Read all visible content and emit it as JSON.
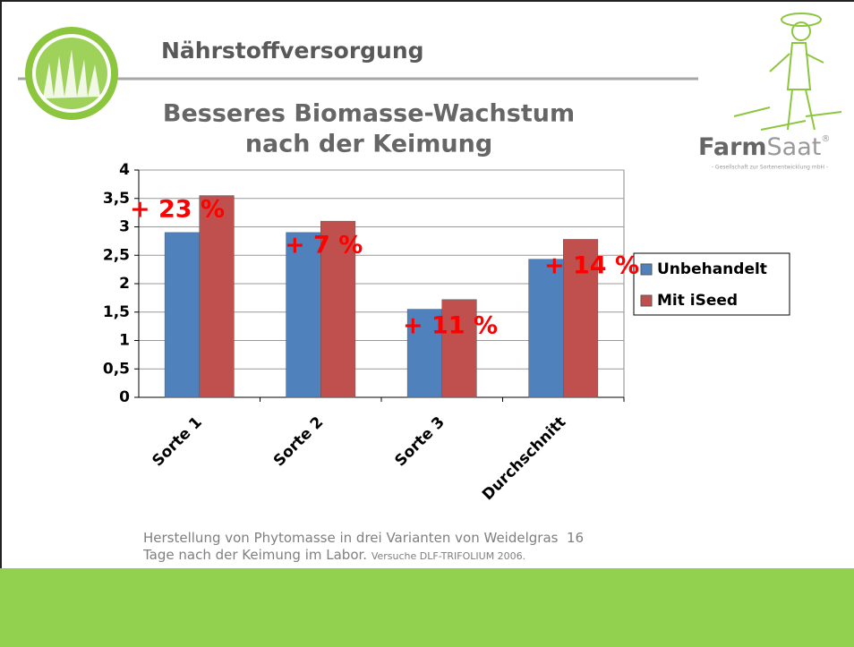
{
  "header": {
    "title": "Nährstoffversorgung",
    "subtitle": [
      "Besseres Biomasse-Wachstum",
      "nach der Keimung"
    ],
    "logo": [
      "Farm",
      "Saat",
      "®"
    ],
    "logo_tagline": "- Gesellschaft zur Sortenentwicklung mbH -"
  },
  "chart_data": {
    "type": "bar",
    "categories": [
      "Sorte 1",
      "Sorte 2",
      "Sorte 3",
      "Durchschnitt"
    ],
    "series": [
      {
        "name": "Unbehandelt",
        "color": "#4f81bd",
        "values": [
          2.9,
          2.9,
          1.55,
          2.43
        ]
      },
      {
        "name": "Mit iSeed",
        "color": "#c0504d",
        "values": [
          3.55,
          3.1,
          1.72,
          2.78
        ]
      }
    ],
    "ylim": [
      0,
      4
    ],
    "yticks": [
      0,
      {
        "value": 0.5,
        "label": "0,5"
      },
      1,
      {
        "value": 1.5,
        "label": "1,5"
      },
      2,
      {
        "value": 2.5,
        "label": "2,5"
      },
      3,
      {
        "value": 3.5,
        "label": "3,5"
      },
      4
    ],
    "grid": true,
    "legend": "right",
    "annotations": [
      "+ 23 %",
      "+ 7 %",
      "+ 11 %",
      "+ 14 %"
    ],
    "annotation_color": "#ff0000"
  },
  "footer": {
    "note": "Herstellung von Phytomasse in drei Varianten von Weidelgras  16 Tage nach der Keimung im Labor.",
    "source": "Versuche DLF-TRIFOLIUM 2006."
  }
}
